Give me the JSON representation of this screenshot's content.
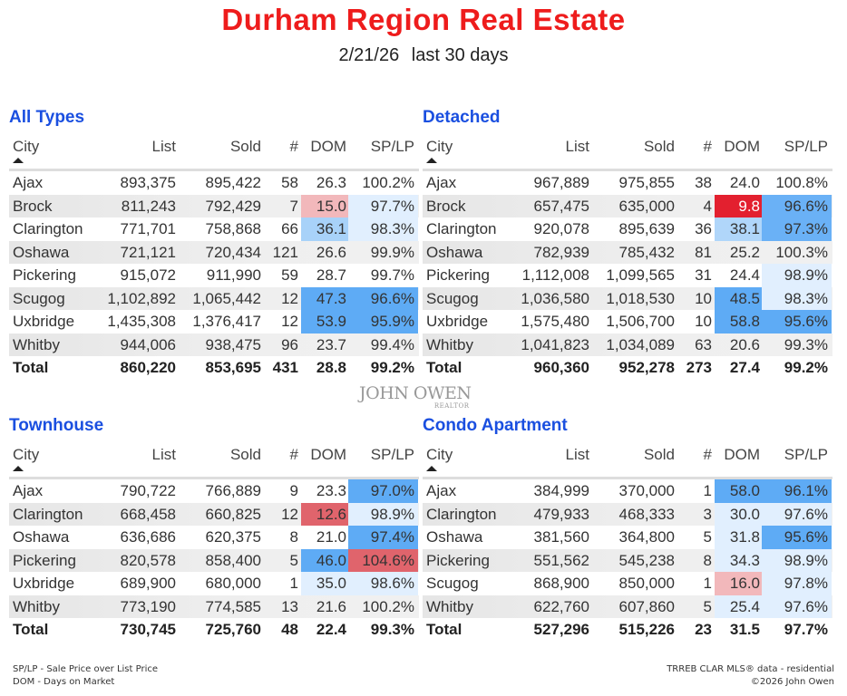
{
  "header": {
    "title": "Durham Region Real Estate",
    "date": "2/21/26",
    "period": "last 30 days"
  },
  "columns": {
    "city": "City",
    "list": "List",
    "sold": "Sold",
    "count": "#",
    "dom": "DOM",
    "splp": "SP/LP"
  },
  "colors": {
    "title": "#ee1c1c",
    "section": "#1a4fe0",
    "strong_blue": "#5eabf5",
    "mid_blue": "#a8d2f9",
    "light_blue": "#e1effe",
    "pink": "#f2b8bb",
    "red": "#e3202f",
    "mid_red": "#e0646c"
  },
  "tables": [
    {
      "title": "All Types",
      "rows": [
        {
          "city": "Ajax",
          "list": "893,375",
          "sold": "895,422",
          "count": "58",
          "dom": "26.3",
          "splp": "100.2%",
          "dom_bg": "",
          "splp_bg": ""
        },
        {
          "city": "Brock",
          "list": "811,243",
          "sold": "792,429",
          "count": "7",
          "dom": "15.0",
          "splp": "97.7%",
          "dom_bg": "#f2b8bb",
          "splp_bg": "#e1effe"
        },
        {
          "city": "Clarington",
          "list": "771,701",
          "sold": "758,868",
          "count": "66",
          "dom": "36.1",
          "splp": "98.3%",
          "dom_bg": "#a8d2f9",
          "splp_bg": "#e1effe"
        },
        {
          "city": "Oshawa",
          "list": "721,121",
          "sold": "720,434",
          "count": "121",
          "dom": "26.6",
          "splp": "99.9%",
          "dom_bg": "",
          "splp_bg": ""
        },
        {
          "city": "Pickering",
          "list": "915,072",
          "sold": "911,990",
          "count": "59",
          "dom": "28.7",
          "splp": "99.7%",
          "dom_bg": "",
          "splp_bg": ""
        },
        {
          "city": "Scugog",
          "list": "1,102,892",
          "sold": "1,065,442",
          "count": "12",
          "dom": "47.3",
          "splp": "96.6%",
          "dom_bg": "#5eabf5",
          "splp_bg": "#5eabf5"
        },
        {
          "city": "Uxbridge",
          "list": "1,435,308",
          "sold": "1,376,417",
          "count": "12",
          "dom": "53.9",
          "splp": "95.9%",
          "dom_bg": "#5eabf5",
          "splp_bg": "#5eabf5"
        },
        {
          "city": "Whitby",
          "list": "944,006",
          "sold": "938,475",
          "count": "96",
          "dom": "23.7",
          "splp": "99.4%",
          "dom_bg": "",
          "splp_bg": ""
        }
      ],
      "total": {
        "city": "Total",
        "list": "860,220",
        "sold": "853,695",
        "count": "431",
        "dom": "28.8",
        "splp": "99.2%"
      }
    },
    {
      "title": "Detached",
      "rows": [
        {
          "city": "Ajax",
          "list": "967,889",
          "sold": "975,855",
          "count": "38",
          "dom": "24.0",
          "splp": "100.8%",
          "dom_bg": "",
          "splp_bg": ""
        },
        {
          "city": "Brock",
          "list": "657,475",
          "sold": "635,000",
          "count": "4",
          "dom": "9.8",
          "splp": "96.6%",
          "dom_bg": "#e3202f",
          "splp_bg": "#6ab1f6",
          "dom_fg": "#ffffff"
        },
        {
          "city": "Clarington",
          "list": "920,078",
          "sold": "895,639",
          "count": "36",
          "dom": "38.1",
          "splp": "97.3%",
          "dom_bg": "#b0d6fa",
          "splp_bg": "#6ab1f6"
        },
        {
          "city": "Oshawa",
          "list": "782,939",
          "sold": "785,432",
          "count": "81",
          "dom": "25.2",
          "splp": "100.3%",
          "dom_bg": "",
          "splp_bg": ""
        },
        {
          "city": "Pickering",
          "list": "1,112,008",
          "sold": "1,099,565",
          "count": "31",
          "dom": "24.4",
          "splp": "98.9%",
          "dom_bg": "",
          "splp_bg": "#e1effe"
        },
        {
          "city": "Scugog",
          "list": "1,036,580",
          "sold": "1,018,530",
          "count": "10",
          "dom": "48.5",
          "splp": "98.3%",
          "dom_bg": "#5eabf5",
          "splp_bg": "#e1effe"
        },
        {
          "city": "Uxbridge",
          "list": "1,575,480",
          "sold": "1,506,700",
          "count": "10",
          "dom": "58.8",
          "splp": "95.6%",
          "dom_bg": "#5eabf5",
          "splp_bg": "#5eabf5"
        },
        {
          "city": "Whitby",
          "list": "1,041,823",
          "sold": "1,034,089",
          "count": "63",
          "dom": "20.6",
          "splp": "99.3%",
          "dom_bg": "",
          "splp_bg": ""
        }
      ],
      "total": {
        "city": "Total",
        "list": "960,360",
        "sold": "952,278",
        "count": "273",
        "dom": "27.4",
        "splp": "99.2%"
      }
    },
    {
      "title": "Townhouse",
      "rows": [
        {
          "city": "Ajax",
          "list": "790,722",
          "sold": "766,889",
          "count": "9",
          "dom": "23.3",
          "splp": "97.0%",
          "dom_bg": "",
          "splp_bg": "#5eabf5"
        },
        {
          "city": "Clarington",
          "list": "668,458",
          "sold": "660,825",
          "count": "12",
          "dom": "12.6",
          "splp": "98.9%",
          "dom_bg": "#e0646c",
          "splp_bg": "#e1effe"
        },
        {
          "city": "Oshawa",
          "list": "636,686",
          "sold": "620,375",
          "count": "8",
          "dom": "21.0",
          "splp": "97.4%",
          "dom_bg": "",
          "splp_bg": "#5eabf5"
        },
        {
          "city": "Pickering",
          "list": "820,578",
          "sold": "858,400",
          "count": "5",
          "dom": "46.0",
          "splp": "104.6%",
          "dom_bg": "#5eabf5",
          "splp_bg": "#e0646c"
        },
        {
          "city": "Uxbridge",
          "list": "689,900",
          "sold": "680,000",
          "count": "1",
          "dom": "35.0",
          "splp": "98.6%",
          "dom_bg": "#e1effe",
          "splp_bg": "#e1effe"
        },
        {
          "city": "Whitby",
          "list": "773,190",
          "sold": "774,585",
          "count": "13",
          "dom": "21.6",
          "splp": "100.2%",
          "dom_bg": "",
          "splp_bg": ""
        }
      ],
      "total": {
        "city": "Total",
        "list": "730,745",
        "sold": "725,760",
        "count": "48",
        "dom": "22.4",
        "splp": "99.3%"
      }
    },
    {
      "title": "Condo Apartment",
      "rows": [
        {
          "city": "Ajax",
          "list": "384,999",
          "sold": "370,000",
          "count": "1",
          "dom": "58.0",
          "splp": "96.1%",
          "dom_bg": "#5eabf5",
          "splp_bg": "#5eabf5"
        },
        {
          "city": "Clarington",
          "list": "479,933",
          "sold": "468,333",
          "count": "3",
          "dom": "30.0",
          "splp": "97.6%",
          "dom_bg": "#e1effe",
          "splp_bg": "#e1effe"
        },
        {
          "city": "Oshawa",
          "list": "381,560",
          "sold": "364,800",
          "count": "5",
          "dom": "31.8",
          "splp": "95.6%",
          "dom_bg": "#e1effe",
          "splp_bg": "#5eabf5"
        },
        {
          "city": "Pickering",
          "list": "551,562",
          "sold": "545,238",
          "count": "8",
          "dom": "34.3",
          "splp": "98.9%",
          "dom_bg": "#e1effe",
          "splp_bg": "#e1effe"
        },
        {
          "city": "Scugog",
          "list": "868,900",
          "sold": "850,000",
          "count": "1",
          "dom": "16.0",
          "splp": "97.8%",
          "dom_bg": "#f2b8bb",
          "splp_bg": "#e1effe"
        },
        {
          "city": "Whitby",
          "list": "622,760",
          "sold": "607,860",
          "count": "5",
          "dom": "25.4",
          "splp": "97.6%",
          "dom_bg": "#e1effe",
          "splp_bg": "#e1effe"
        }
      ],
      "total": {
        "city": "Total",
        "list": "527,296",
        "sold": "515,226",
        "count": "23",
        "dom": "31.5",
        "splp": "97.7%"
      }
    }
  ],
  "logo": {
    "name": "JOHN OWEN",
    "sub": "REALTOR"
  },
  "footer": {
    "legend1": "SP/LP - Sale Price over List Price",
    "legend2": "DOM - Days on Market",
    "source": "TRREB CLAR MLS® data - residential",
    "copyright": "©2026 John Owen"
  }
}
